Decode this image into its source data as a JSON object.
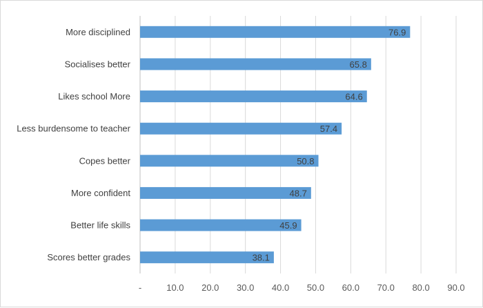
{
  "chart_data": {
    "type": "bar",
    "orientation": "horizontal",
    "categories": [
      "More disciplined",
      "Socialises better",
      "Likes school More",
      "Less burdensome to teacher",
      "Copes better",
      "More confident",
      "Better life skills",
      "Scores better grades"
    ],
    "values": [
      76.9,
      65.8,
      64.6,
      57.4,
      50.8,
      48.7,
      45.9,
      38.1
    ],
    "data_labels": [
      "76.9",
      "65.8",
      "64.6",
      "57.4",
      "50.8",
      "48.7",
      "45.9",
      "38.1"
    ],
    "xlim": [
      0,
      90
    ],
    "x_ticks": [
      0,
      10,
      20,
      30,
      40,
      50,
      60,
      70,
      80,
      90
    ],
    "x_tick_labels": [
      "-",
      "10.0",
      "20.0",
      "30.0",
      "40.0",
      "50.0",
      "60.0",
      "70.0",
      "80.0",
      "90.0"
    ],
    "title": "",
    "xlabel": "",
    "ylabel": "",
    "grid": true,
    "legend": "none",
    "bar_color": "#5b9bd5"
  }
}
